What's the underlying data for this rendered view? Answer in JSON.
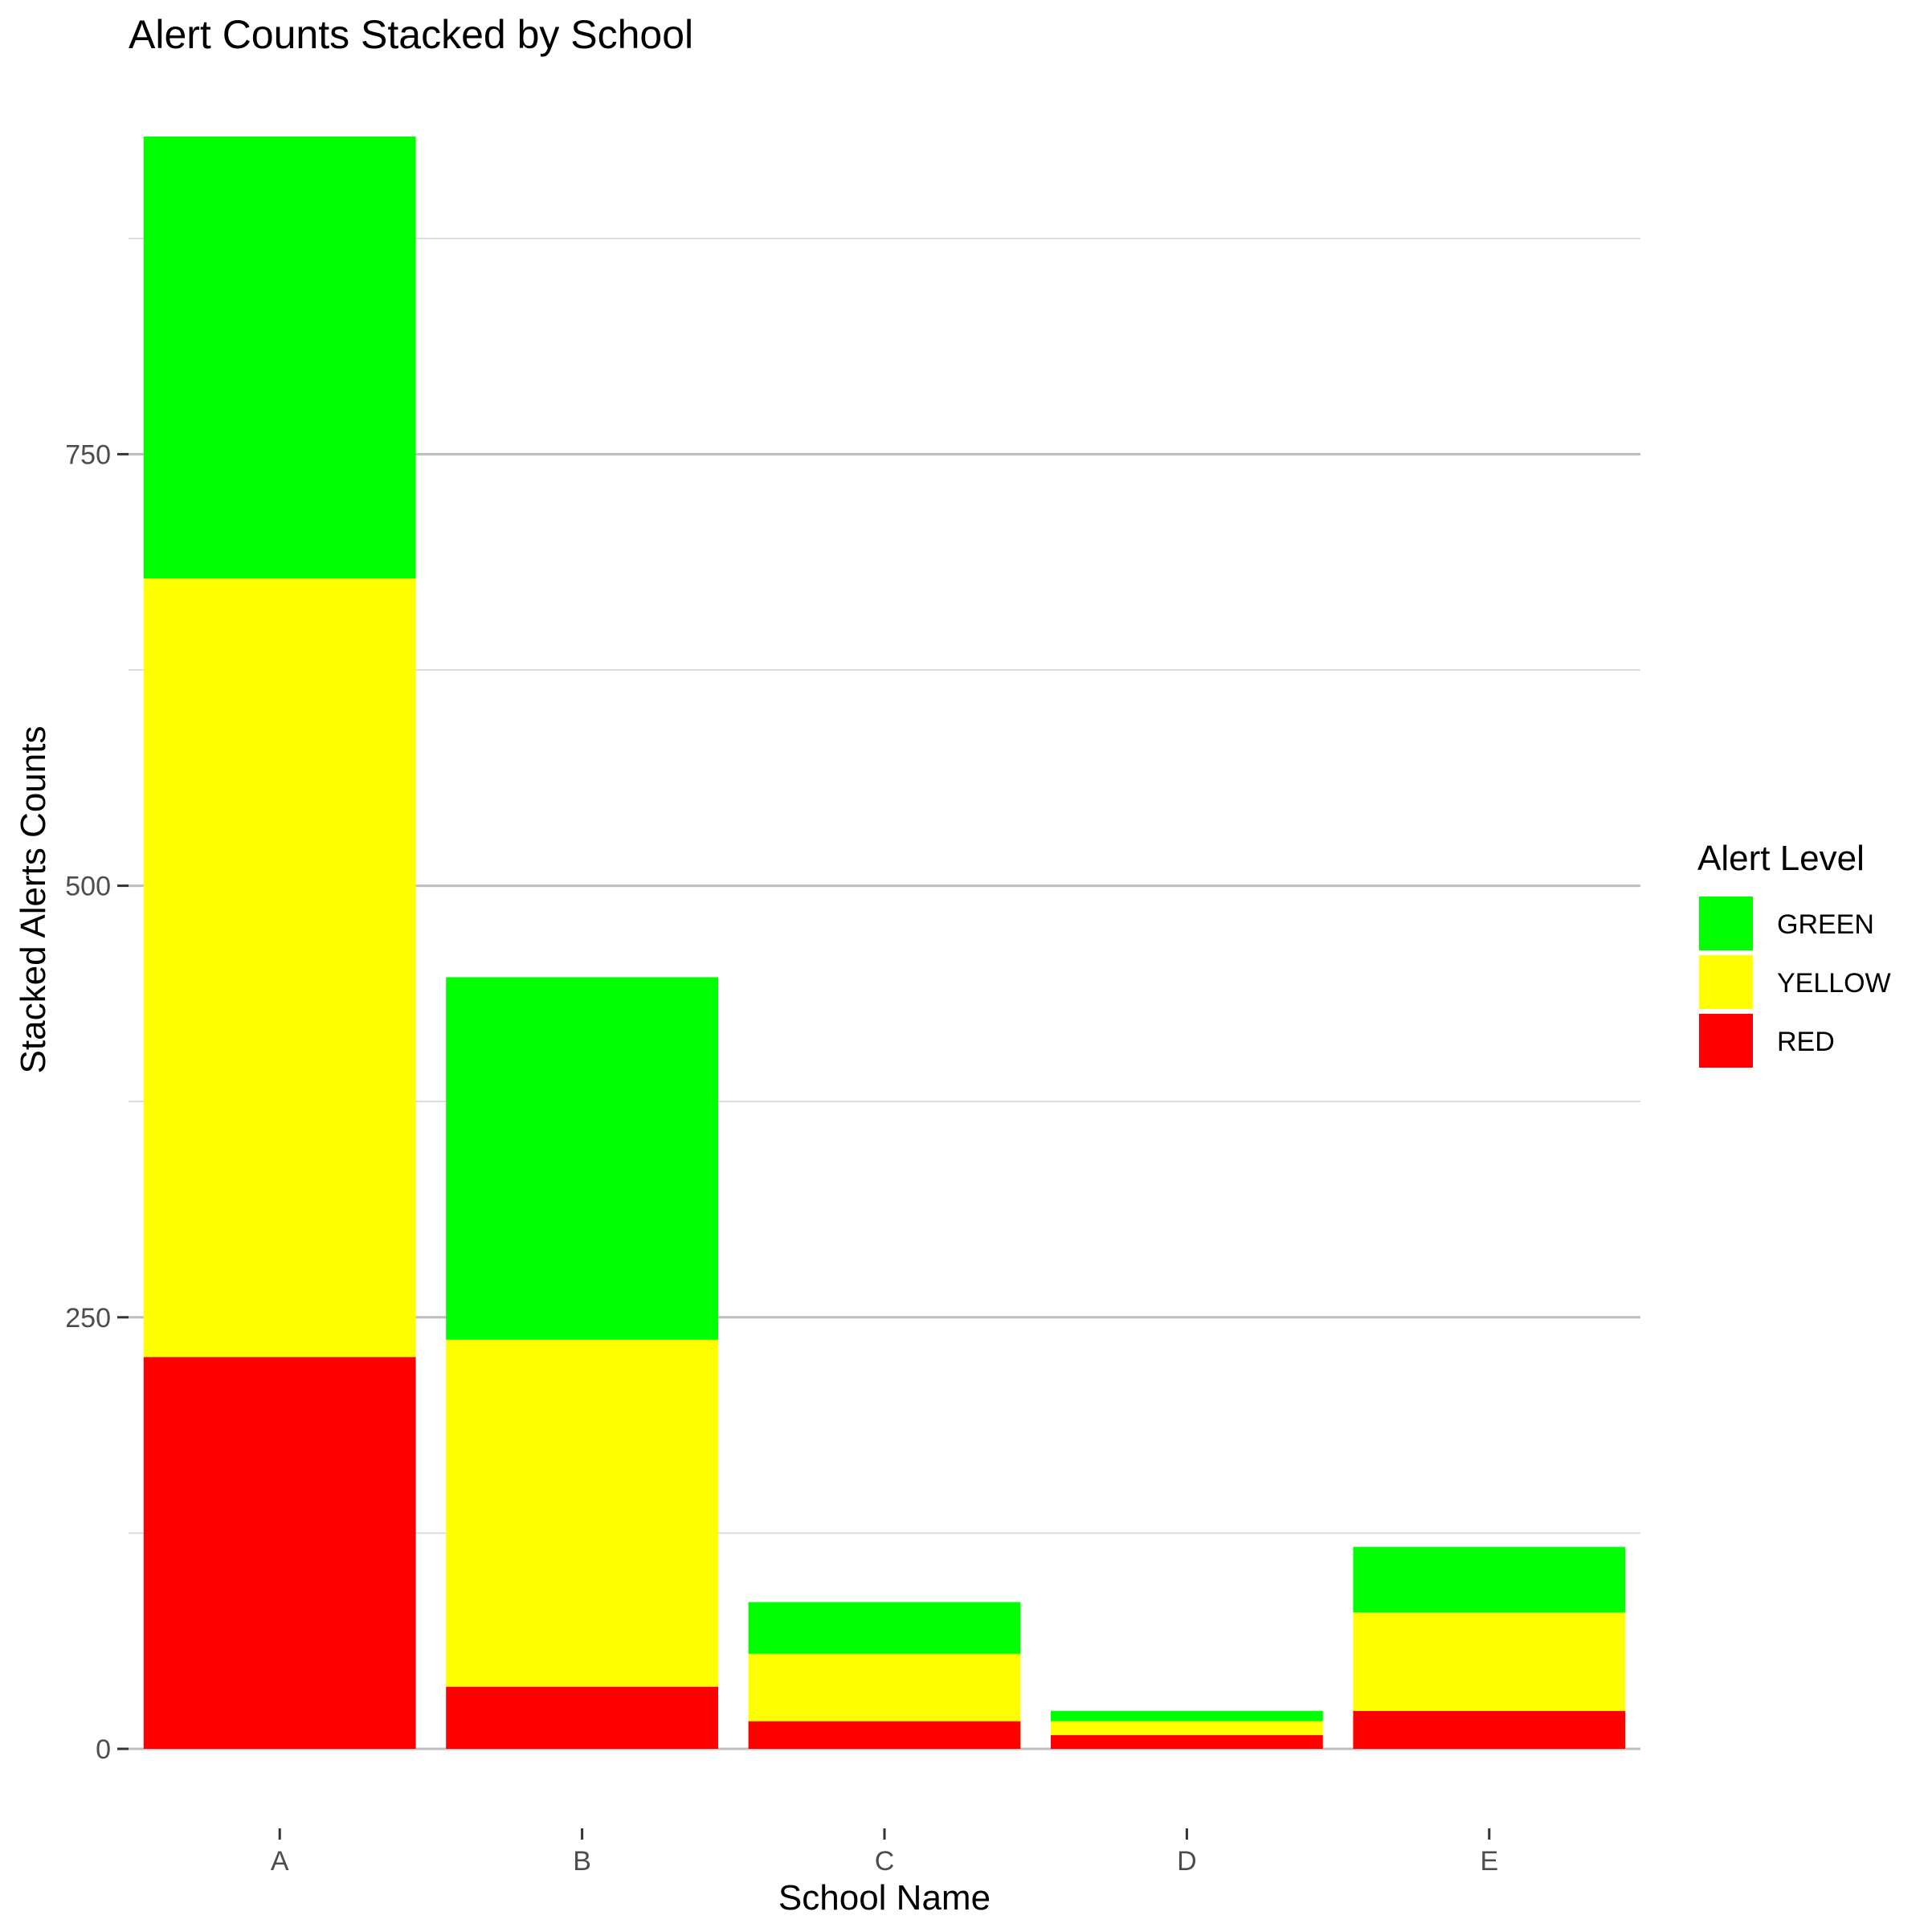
{
  "chart_data": {
    "type": "bar",
    "stacked": true,
    "title": "Alert Counts Stacked by School",
    "xlabel": "School Name",
    "ylabel": "Stacked Alerts Counts",
    "categories": [
      "A",
      "B",
      "C",
      "D",
      "E"
    ],
    "series": [
      {
        "name": "RED",
        "color": "#ff0000",
        "values": [
          227,
          36,
          16,
          8,
          22
        ]
      },
      {
        "name": "YELLOW",
        "color": "#ffff00",
        "values": [
          451,
          201,
          39,
          8,
          57
        ]
      },
      {
        "name": "GREEN",
        "color": "#00ff00",
        "values": [
          256,
          210,
          30,
          6,
          38
        ]
      }
    ],
    "ylim": [
      0,
      934
    ],
    "y_ticks": [
      0,
      250,
      500,
      750
    ],
    "y_tick_labels": [
      "0",
      "250",
      "500",
      "750"
    ],
    "grid": true,
    "legend": {
      "title": "Alert Level",
      "position": "right",
      "order": [
        "GREEN",
        "YELLOW",
        "RED"
      ]
    }
  }
}
